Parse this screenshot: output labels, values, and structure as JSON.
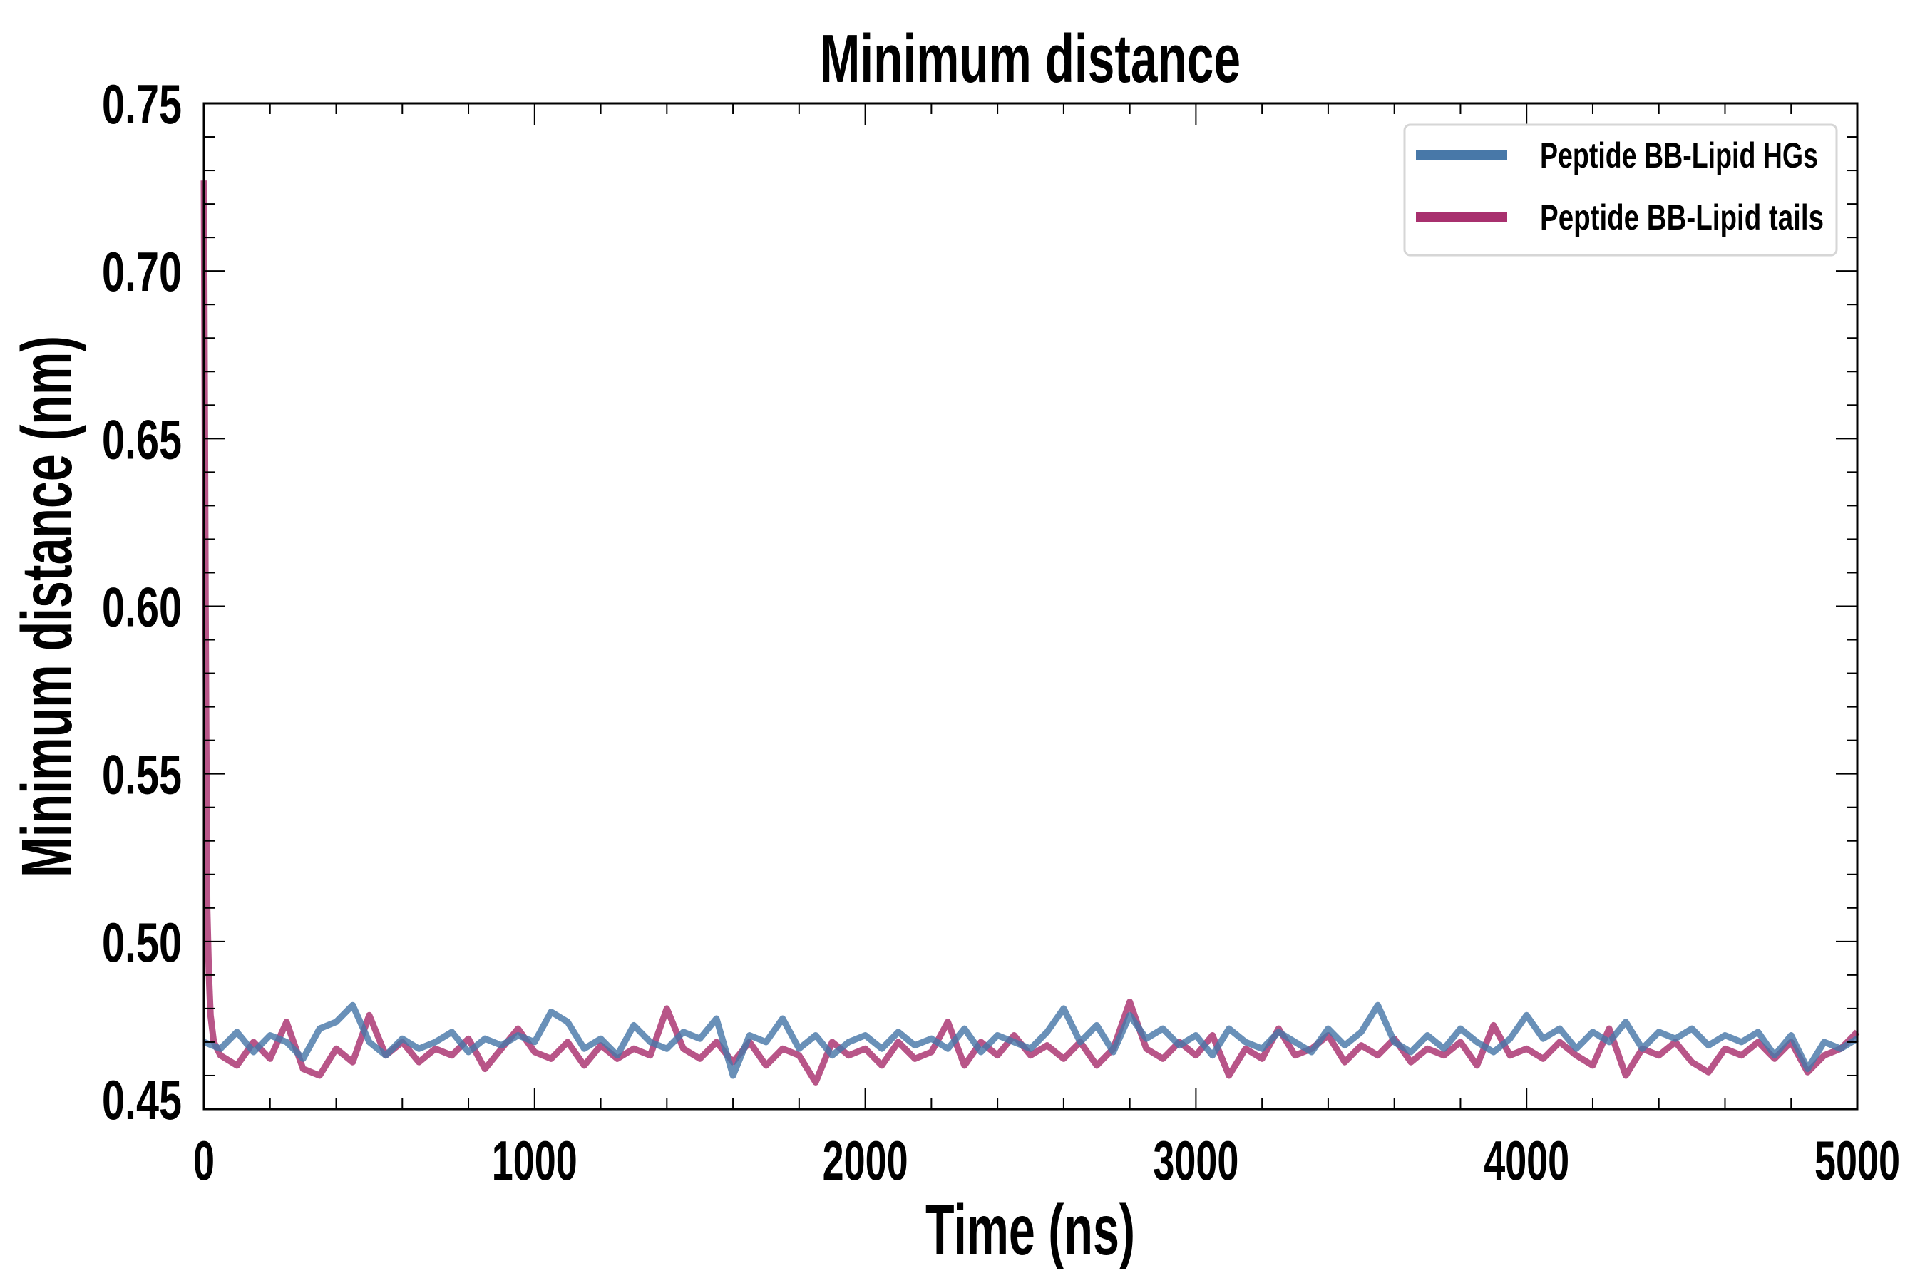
{
  "chart_data": {
    "type": "line",
    "title": "Minimum distance",
    "xlabel": "Time (ns)",
    "ylabel": "Minimum distance (nm)",
    "xlim": [
      0,
      5000
    ],
    "ylim": [
      0.45,
      0.75
    ],
    "xticks": [
      "0",
      "1000",
      "2000",
      "3000",
      "4000",
      "5000"
    ],
    "yticks": [
      "0.45",
      "0.50",
      "0.55",
      "0.60",
      "0.65",
      "0.70",
      "0.75"
    ],
    "grid": false,
    "legend_position": "top-right",
    "series": [
      {
        "name": "Peptide BB-Lipid HGs",
        "color": "#4878a8",
        "x": [
          0,
          50,
          100,
          150,
          200,
          250,
          300,
          350,
          400,
          450,
          500,
          550,
          600,
          650,
          700,
          750,
          800,
          850,
          900,
          950,
          1000,
          1050,
          1100,
          1150,
          1200,
          1250,
          1300,
          1350,
          1400,
          1450,
          1500,
          1550,
          1600,
          1650,
          1700,
          1750,
          1800,
          1850,
          1900,
          1950,
          2000,
          2050,
          2100,
          2150,
          2200,
          2250,
          2300,
          2350,
          2400,
          2450,
          2500,
          2550,
          2600,
          2650,
          2700,
          2750,
          2800,
          2850,
          2900,
          2950,
          3000,
          3050,
          3100,
          3150,
          3200,
          3250,
          3300,
          3350,
          3400,
          3450,
          3500,
          3550,
          3600,
          3650,
          3700,
          3750,
          3800,
          3850,
          3900,
          3950,
          4000,
          4050,
          4100,
          4150,
          4200,
          4250,
          4300,
          4350,
          4400,
          4450,
          4500,
          4550,
          4600,
          4650,
          4700,
          4750,
          4800,
          4850,
          4900,
          4950,
          5000
        ],
        "y": [
          0.47,
          0.468,
          0.473,
          0.467,
          0.472,
          0.47,
          0.465,
          0.474,
          0.476,
          0.481,
          0.47,
          0.466,
          0.471,
          0.468,
          0.47,
          0.473,
          0.467,
          0.471,
          0.469,
          0.472,
          0.47,
          0.479,
          0.476,
          0.468,
          0.471,
          0.466,
          0.475,
          0.47,
          0.468,
          0.473,
          0.471,
          0.477,
          0.46,
          0.472,
          0.47,
          0.477,
          0.468,
          0.472,
          0.466,
          0.47,
          0.472,
          0.468,
          0.473,
          0.469,
          0.471,
          0.468,
          0.474,
          0.467,
          0.472,
          0.47,
          0.468,
          0.473,
          0.48,
          0.47,
          0.475,
          0.467,
          0.478,
          0.471,
          0.474,
          0.469,
          0.472,
          0.466,
          0.474,
          0.47,
          0.468,
          0.473,
          0.47,
          0.467,
          0.474,
          0.469,
          0.473,
          0.481,
          0.47,
          0.467,
          0.472,
          0.468,
          0.474,
          0.47,
          0.467,
          0.471,
          0.478,
          0.471,
          0.474,
          0.468,
          0.473,
          0.47,
          0.476,
          0.468,
          0.473,
          0.471,
          0.474,
          0.469,
          0.472,
          0.47,
          0.473,
          0.466,
          0.472,
          0.462,
          0.47,
          0.468,
          0.471
        ]
      },
      {
        "name": "Peptide BB-Lipid tails",
        "color": "#a8306e",
        "x": [
          0,
          5,
          10,
          15,
          20,
          30,
          50,
          100,
          150,
          200,
          250,
          300,
          350,
          400,
          450,
          500,
          550,
          600,
          650,
          700,
          750,
          800,
          850,
          900,
          950,
          1000,
          1050,
          1100,
          1150,
          1200,
          1250,
          1300,
          1350,
          1400,
          1450,
          1500,
          1550,
          1600,
          1650,
          1700,
          1750,
          1800,
          1850,
          1900,
          1950,
          2000,
          2050,
          2100,
          2150,
          2200,
          2250,
          2300,
          2350,
          2400,
          2450,
          2500,
          2550,
          2600,
          2650,
          2700,
          2750,
          2800,
          2850,
          2900,
          2950,
          3000,
          3050,
          3100,
          3150,
          3200,
          3250,
          3300,
          3350,
          3400,
          3450,
          3500,
          3550,
          3600,
          3650,
          3700,
          3750,
          3800,
          3850,
          3900,
          3950,
          4000,
          4050,
          4100,
          4150,
          4200,
          4250,
          4300,
          4350,
          4400,
          4450,
          4500,
          4550,
          4600,
          4650,
          4700,
          4750,
          4800,
          4850,
          4900,
          4950,
          5000
        ],
        "y": [
          0.727,
          0.6,
          0.51,
          0.49,
          0.478,
          0.47,
          0.466,
          0.463,
          0.47,
          0.465,
          0.476,
          0.462,
          0.46,
          0.468,
          0.464,
          0.478,
          0.466,
          0.47,
          0.464,
          0.468,
          0.466,
          0.471,
          0.462,
          0.468,
          0.474,
          0.467,
          0.465,
          0.47,
          0.463,
          0.469,
          0.465,
          0.468,
          0.466,
          0.48,
          0.468,
          0.465,
          0.47,
          0.464,
          0.47,
          0.463,
          0.468,
          0.466,
          0.458,
          0.47,
          0.466,
          0.468,
          0.463,
          0.47,
          0.465,
          0.467,
          0.476,
          0.463,
          0.47,
          0.466,
          0.472,
          0.466,
          0.469,
          0.465,
          0.47,
          0.463,
          0.468,
          0.482,
          0.468,
          0.465,
          0.47,
          0.466,
          0.472,
          0.46,
          0.468,
          0.465,
          0.474,
          0.466,
          0.468,
          0.472,
          0.464,
          0.469,
          0.466,
          0.471,
          0.464,
          0.468,
          0.466,
          0.47,
          0.463,
          0.475,
          0.466,
          0.468,
          0.465,
          0.47,
          0.466,
          0.463,
          0.474,
          0.46,
          0.468,
          0.466,
          0.47,
          0.464,
          0.461,
          0.468,
          0.466,
          0.47,
          0.465,
          0.47,
          0.461,
          0.466,
          0.468,
          0.473
        ]
      }
    ]
  }
}
